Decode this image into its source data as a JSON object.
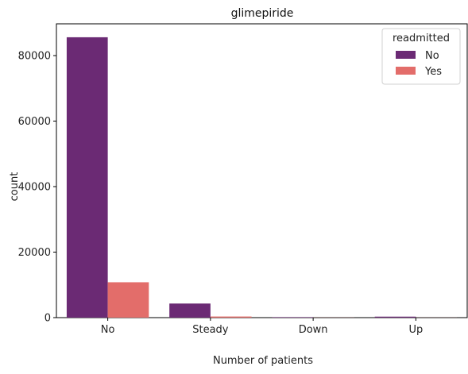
{
  "chart_data": {
    "type": "bar",
    "title": "glimepiride",
    "xlabel": "Number of patients",
    "ylabel": "count",
    "categories": [
      "No",
      "Steady",
      "Down",
      "Up"
    ],
    "series": [
      {
        "name": "No",
        "values": [
          85600,
          4300,
          150,
          300
        ],
        "color": "#6b2a74"
      },
      {
        "name": "Yes",
        "values": [
          10800,
          340,
          30,
          25
        ],
        "color": "#e36d6a"
      }
    ],
    "ylim": [
      0,
      89700
    ],
    "yticks": [
      0,
      20000,
      40000,
      60000,
      80000
    ],
    "grid": false,
    "legend": {
      "title": "readmitted",
      "placement": "top-right"
    }
  }
}
